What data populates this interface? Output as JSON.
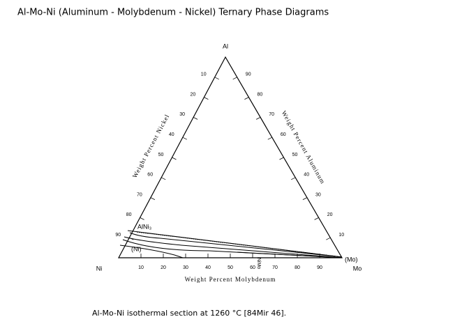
{
  "header": {
    "title": "Al-Mo-Ni (Aluminum - Molybdenum - Nickel) Ternary Phase Diagrams"
  },
  "diagram": {
    "vertices": {
      "top": "Al",
      "left": "Ni",
      "right": "Mo"
    },
    "axes": {
      "bottom": {
        "title": "Weight Percent Molybdenum",
        "ticks": [
          10,
          20,
          30,
          40,
          50,
          60,
          70,
          80,
          90
        ]
      },
      "left": {
        "title": "Weight Percent Nickel",
        "ticks": [
          10,
          20,
          30,
          40,
          50,
          60,
          70,
          80,
          90
        ]
      },
      "right": {
        "title": "Weight Percent Aluminum",
        "ticks": [
          10,
          20,
          30,
          40,
          50,
          60,
          70,
          80,
          90
        ]
      }
    },
    "phases": [
      "AlNi₃",
      "(Ni)",
      "(Mo)",
      "NiMo"
    ]
  },
  "caption": "Al-Mo-Ni isothermal section at 1260 °C [84Mir 46]."
}
